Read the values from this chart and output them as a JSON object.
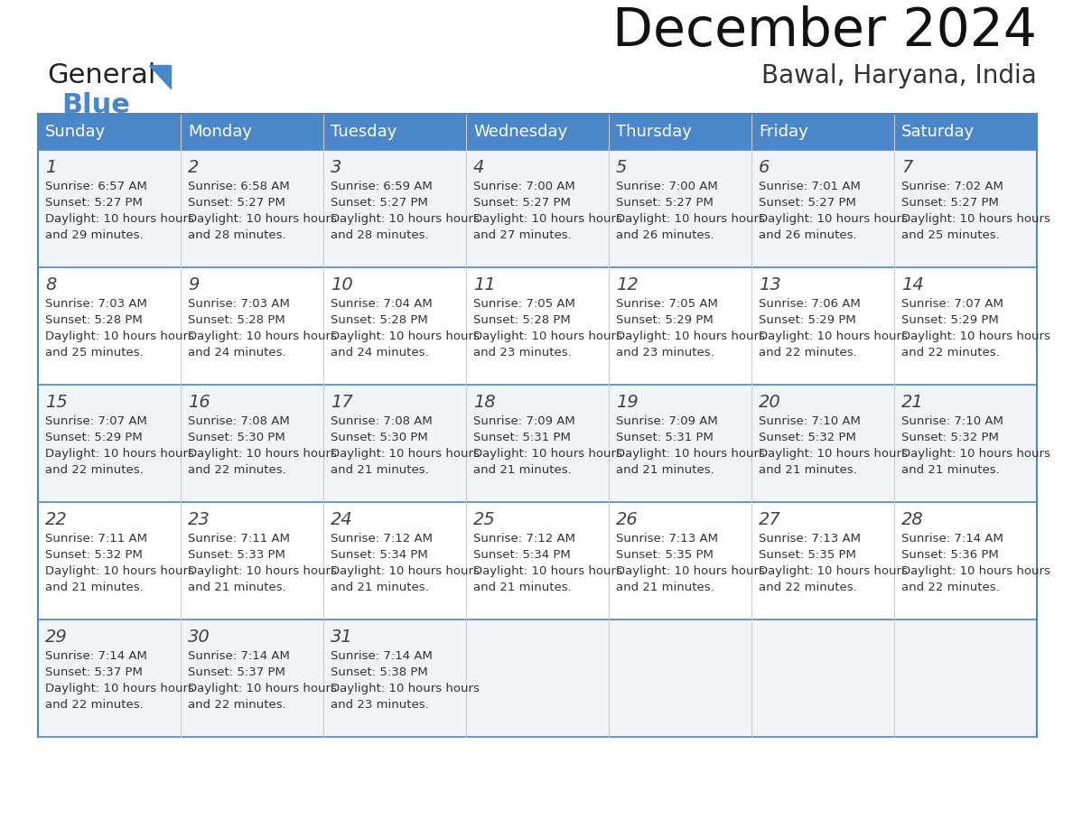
{
  "title": "December 2024",
  "subtitle": "Bawal, Haryana, India",
  "header_color": "#4a86c8",
  "header_text_color": "#ffffff",
  "days_of_week": [
    "Sunday",
    "Monday",
    "Tuesday",
    "Wednesday",
    "Thursday",
    "Friday",
    "Saturday"
  ],
  "bg_color": "#ffffff",
  "border_color": "#4a86c8",
  "cell_text_color": "#333333",
  "calendar_data": [
    [
      {
        "day": 1,
        "sunrise": "6:57 AM",
        "sunset": "5:27 PM",
        "daylight": "10 hours and 29 minutes"
      },
      {
        "day": 2,
        "sunrise": "6:58 AM",
        "sunset": "5:27 PM",
        "daylight": "10 hours and 28 minutes"
      },
      {
        "day": 3,
        "sunrise": "6:59 AM",
        "sunset": "5:27 PM",
        "daylight": "10 hours and 28 minutes"
      },
      {
        "day": 4,
        "sunrise": "7:00 AM",
        "sunset": "5:27 PM",
        "daylight": "10 hours and 27 minutes"
      },
      {
        "day": 5,
        "sunrise": "7:00 AM",
        "sunset": "5:27 PM",
        "daylight": "10 hours and 26 minutes"
      },
      {
        "day": 6,
        "sunrise": "7:01 AM",
        "sunset": "5:27 PM",
        "daylight": "10 hours and 26 minutes"
      },
      {
        "day": 7,
        "sunrise": "7:02 AM",
        "sunset": "5:27 PM",
        "daylight": "10 hours and 25 minutes"
      }
    ],
    [
      {
        "day": 8,
        "sunrise": "7:03 AM",
        "sunset": "5:28 PM",
        "daylight": "10 hours and 25 minutes"
      },
      {
        "day": 9,
        "sunrise": "7:03 AM",
        "sunset": "5:28 PM",
        "daylight": "10 hours and 24 minutes"
      },
      {
        "day": 10,
        "sunrise": "7:04 AM",
        "sunset": "5:28 PM",
        "daylight": "10 hours and 24 minutes"
      },
      {
        "day": 11,
        "sunrise": "7:05 AM",
        "sunset": "5:28 PM",
        "daylight": "10 hours and 23 minutes"
      },
      {
        "day": 12,
        "sunrise": "7:05 AM",
        "sunset": "5:29 PM",
        "daylight": "10 hours and 23 minutes"
      },
      {
        "day": 13,
        "sunrise": "7:06 AM",
        "sunset": "5:29 PM",
        "daylight": "10 hours and 22 minutes"
      },
      {
        "day": 14,
        "sunrise": "7:07 AM",
        "sunset": "5:29 PM",
        "daylight": "10 hours and 22 minutes"
      }
    ],
    [
      {
        "day": 15,
        "sunrise": "7:07 AM",
        "sunset": "5:29 PM",
        "daylight": "10 hours and 22 minutes"
      },
      {
        "day": 16,
        "sunrise": "7:08 AM",
        "sunset": "5:30 PM",
        "daylight": "10 hours and 22 minutes"
      },
      {
        "day": 17,
        "sunrise": "7:08 AM",
        "sunset": "5:30 PM",
        "daylight": "10 hours and 21 minutes"
      },
      {
        "day": 18,
        "sunrise": "7:09 AM",
        "sunset": "5:31 PM",
        "daylight": "10 hours and 21 minutes"
      },
      {
        "day": 19,
        "sunrise": "7:09 AM",
        "sunset": "5:31 PM",
        "daylight": "10 hours and 21 minutes"
      },
      {
        "day": 20,
        "sunrise": "7:10 AM",
        "sunset": "5:32 PM",
        "daylight": "10 hours and 21 minutes"
      },
      {
        "day": 21,
        "sunrise": "7:10 AM",
        "sunset": "5:32 PM",
        "daylight": "10 hours and 21 minutes"
      }
    ],
    [
      {
        "day": 22,
        "sunrise": "7:11 AM",
        "sunset": "5:32 PM",
        "daylight": "10 hours and 21 minutes"
      },
      {
        "day": 23,
        "sunrise": "7:11 AM",
        "sunset": "5:33 PM",
        "daylight": "10 hours and 21 minutes"
      },
      {
        "day": 24,
        "sunrise": "7:12 AM",
        "sunset": "5:34 PM",
        "daylight": "10 hours and 21 minutes"
      },
      {
        "day": 25,
        "sunrise": "7:12 AM",
        "sunset": "5:34 PM",
        "daylight": "10 hours and 21 minutes"
      },
      {
        "day": 26,
        "sunrise": "7:13 AM",
        "sunset": "5:35 PM",
        "daylight": "10 hours and 21 minutes"
      },
      {
        "day": 27,
        "sunrise": "7:13 AM",
        "sunset": "5:35 PM",
        "daylight": "10 hours and 22 minutes"
      },
      {
        "day": 28,
        "sunrise": "7:14 AM",
        "sunset": "5:36 PM",
        "daylight": "10 hours and 22 minutes"
      }
    ],
    [
      {
        "day": 29,
        "sunrise": "7:14 AM",
        "sunset": "5:37 PM",
        "daylight": "10 hours and 22 minutes"
      },
      {
        "day": 30,
        "sunrise": "7:14 AM",
        "sunset": "5:37 PM",
        "daylight": "10 hours and 22 minutes"
      },
      {
        "day": 31,
        "sunrise": "7:14 AM",
        "sunset": "5:38 PM",
        "daylight": "10 hours and 23 minutes"
      },
      null,
      null,
      null,
      null
    ]
  ],
  "logo_text_general": "General",
  "logo_text_blue": "Blue",
  "logo_color_general": "#222222",
  "logo_color_blue": "#4a86c8",
  "logo_triangle_color": "#4a86c8",
  "title_fontsize": 42,
  "subtitle_fontsize": 20,
  "header_fontsize": 13,
  "day_num_fontsize": 14,
  "cell_fontsize": 9.5
}
